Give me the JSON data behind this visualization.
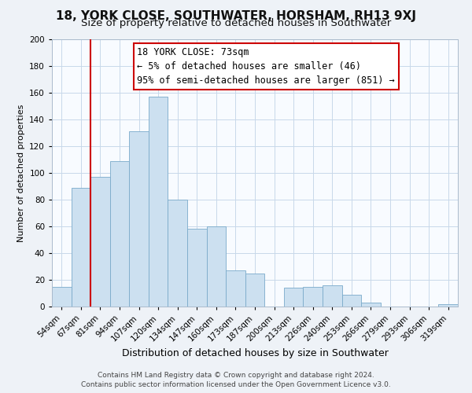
{
  "title": "18, YORK CLOSE, SOUTHWATER, HORSHAM, RH13 9XJ",
  "subtitle": "Size of property relative to detached houses in Southwater",
  "xlabel": "Distribution of detached houses by size in Southwater",
  "ylabel": "Number of detached properties",
  "bar_labels": [
    "54sqm",
    "67sqm",
    "81sqm",
    "94sqm",
    "107sqm",
    "120sqm",
    "134sqm",
    "147sqm",
    "160sqm",
    "173sqm",
    "187sqm",
    "200sqm",
    "213sqm",
    "226sqm",
    "240sqm",
    "253sqm",
    "266sqm",
    "279sqm",
    "293sqm",
    "306sqm",
    "319sqm"
  ],
  "bar_values": [
    15,
    89,
    97,
    109,
    131,
    157,
    80,
    58,
    60,
    27,
    25,
    0,
    14,
    15,
    16,
    9,
    3,
    0,
    0,
    0,
    2
  ],
  "bar_color": "#cce0f0",
  "bar_edge_color": "#7aaaca",
  "vline_x_index": 1.5,
  "vline_color": "#cc0000",
  "annotation_text_line1": "18 YORK CLOSE: 73sqm",
  "annotation_text_line2": "← 5% of detached houses are smaller (46)",
  "annotation_text_line3": "95% of semi-detached houses are larger (851) →",
  "annotation_box_color": "#cc0000",
  "footer_line1": "Contains HM Land Registry data © Crown copyright and database right 2024.",
  "footer_line2": "Contains public sector information licensed under the Open Government Licence v3.0.",
  "ylim": [
    0,
    200
  ],
  "yticks": [
    0,
    20,
    40,
    60,
    80,
    100,
    120,
    140,
    160,
    180,
    200
  ],
  "title_fontsize": 11,
  "subtitle_fontsize": 9.5,
  "xlabel_fontsize": 9,
  "ylabel_fontsize": 8,
  "tick_fontsize": 7.5,
  "annotation_fontsize": 8.5,
  "footer_fontsize": 6.5,
  "bg_color": "#eef2f7",
  "plot_bg_color": "#f8fbff",
  "grid_color": "#c8d8ea"
}
